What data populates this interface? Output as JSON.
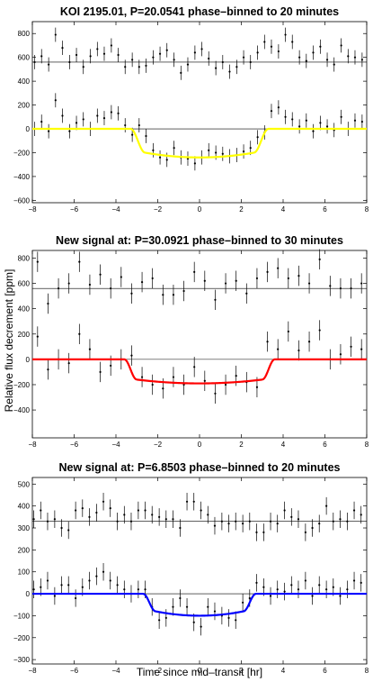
{
  "figure": {
    "ylabel": "Relative flux decrement [ppm]",
    "xlabel": "Time since mid–transit [hr]"
  },
  "chart_data": [
    {
      "type": "scatter",
      "title": "KOI 2195.01, P=20.0541 phase–binned to 20 minutes",
      "xlabel": "Time since mid–transit [hr]",
      "ylabel": "Relative flux decrement [ppm]",
      "xlim": [
        -8,
        8
      ],
      "ylim": [
        -620,
        900
      ],
      "xticks": [
        -8,
        -6,
        -4,
        -2,
        0,
        2,
        4,
        6,
        8
      ],
      "yticks": [
        -600,
        -400,
        -200,
        0,
        200,
        400,
        600,
        800
      ],
      "model_color": "#ffff00",
      "transit": {
        "depth": 200,
        "limb": 40,
        "t1": 2.6,
        "t2": 3.3
      },
      "offset_level": 560,
      "error_bar": 60,
      "series": [
        {
          "x": [
            -7.89,
            -7.56,
            -7.22,
            -6.89,
            -6.56,
            -6.22,
            -5.89,
            -5.56,
            -5.22,
            -4.89,
            -4.56,
            -4.22,
            -3.89,
            -3.56,
            -3.22,
            -2.89,
            -2.56,
            -2.22,
            -1.89,
            -1.56,
            -1.22,
            -0.89,
            -0.56,
            -0.22,
            0.11,
            0.44,
            0.78,
            1.11,
            1.44,
            1.78,
            2.11,
            2.44,
            2.78,
            3.11,
            3.44,
            3.78,
            4.11,
            4.44,
            4.78,
            5.11,
            5.44,
            5.78,
            6.11,
            6.44,
            6.78,
            7.11,
            7.44,
            7.78
          ],
          "y": [
            0,
            60,
            -20,
            240,
            110,
            -20,
            50,
            80,
            0,
            110,
            90,
            140,
            130,
            30,
            -50,
            30,
            -60,
            -180,
            -240,
            -260,
            -160,
            -240,
            -250,
            -290,
            -240,
            -180,
            -200,
            -210,
            -230,
            -220,
            -190,
            -160,
            -70,
            -30,
            150,
            180,
            100,
            80,
            20,
            70,
            -20,
            50,
            20,
            -10,
            100,
            0,
            70,
            60
          ]
        },
        {
          "x": [
            -7.89,
            -7.56,
            -7.22,
            -6.89,
            -6.56,
            -6.22,
            -5.89,
            -5.56,
            -5.22,
            -4.89,
            -4.56,
            -4.22,
            -3.89,
            -3.56,
            -3.22,
            -2.89,
            -2.56,
            -2.22,
            -1.89,
            -1.56,
            -1.22,
            -0.89,
            -0.56,
            -0.22,
            0.11,
            0.44,
            0.78,
            1.11,
            1.44,
            1.78,
            2.11,
            2.44,
            2.78,
            3.11,
            3.44,
            3.78,
            4.11,
            4.44,
            4.78,
            5.11,
            5.44,
            5.78,
            6.11,
            6.44,
            6.78,
            7.11,
            7.44,
            7.78
          ],
          "y": [
            560,
            610,
            540,
            790,
            680,
            560,
            620,
            520,
            610,
            670,
            630,
            700,
            620,
            520,
            580,
            520,
            530,
            600,
            630,
            660,
            580,
            470,
            540,
            640,
            670,
            590,
            510,
            560,
            480,
            520,
            600,
            560,
            640,
            730,
            690,
            650,
            790,
            730,
            600,
            570,
            640,
            690,
            580,
            540,
            700,
            610,
            600,
            580
          ]
        }
      ]
    },
    {
      "type": "scatter",
      "title": "New signal at: P=30.0921 phase–binned to 30 minutes",
      "xlim": [
        -8,
        8
      ],
      "ylim": [
        -620,
        860
      ],
      "xticks": [
        -8,
        -6,
        -4,
        -2,
        0,
        2,
        4,
        6,
        8
      ],
      "yticks": [
        -400,
        -200,
        0,
        200,
        400,
        600,
        800
      ],
      "model_color": "#ff0000",
      "transit": {
        "depth": 160,
        "limb": 30,
        "t1": 3.0,
        "t2": 3.6
      },
      "offset_level": 560,
      "error_bar": 80,
      "series": [
        {
          "x": [
            -7.75,
            -7.25,
            -6.75,
            -6.25,
            -5.75,
            -5.25,
            -4.75,
            -4.25,
            -3.75,
            -3.25,
            -2.75,
            -2.25,
            -1.75,
            -1.25,
            -0.75,
            -0.25,
            0.25,
            0.75,
            1.25,
            1.75,
            2.25,
            2.75,
            3.25,
            3.75,
            4.25,
            4.75,
            5.25,
            5.75,
            6.25,
            6.75,
            7.25,
            7.75
          ],
          "y": [
            180,
            -80,
            0,
            -30,
            200,
            80,
            -100,
            -50,
            0,
            30,
            -140,
            -200,
            -230,
            -140,
            -200,
            -60,
            -170,
            -270,
            -200,
            -130,
            -180,
            -220,
            140,
            80,
            220,
            70,
            140,
            230,
            0,
            40,
            100,
            80
          ]
        },
        {
          "x": [
            -7.75,
            -7.25,
            -6.75,
            -6.25,
            -5.75,
            -5.25,
            -4.75,
            -4.25,
            -3.75,
            -3.25,
            -2.75,
            -2.25,
            -1.75,
            -1.25,
            -0.75,
            -0.25,
            0.25,
            0.75,
            1.25,
            1.75,
            2.25,
            2.75,
            3.25,
            3.75,
            4.25,
            4.75,
            5.25,
            5.75,
            6.25,
            6.75,
            7.25,
            7.75
          ],
          "y": [
            770,
            440,
            560,
            600,
            770,
            590,
            670,
            560,
            650,
            520,
            610,
            640,
            510,
            510,
            540,
            690,
            620,
            470,
            600,
            620,
            520,
            640,
            690,
            720,
            640,
            660,
            600,
            790,
            580,
            560,
            560,
            600
          ]
        }
      ]
    },
    {
      "type": "scatter",
      "title": "New signal at: P=6.8503 phase–binned to 20 minutes",
      "xlim": [
        -8,
        8
      ],
      "ylim": [
        -320,
        530
      ],
      "xticks": [
        -8,
        -6,
        -4,
        -2,
        0,
        2,
        4,
        6,
        8
      ],
      "yticks": [
        -300,
        -200,
        -100,
        0,
        100,
        200,
        300,
        400,
        500
      ],
      "model_color": "#0000ff",
      "transit": {
        "depth": 80,
        "limb": 20,
        "t1": 2.1,
        "t2": 2.7
      },
      "offset_level": 330,
      "error_bar": 40,
      "series": [
        {
          "x": [
            -7.93,
            -7.6,
            -7.27,
            -6.93,
            -6.6,
            -6.27,
            -5.93,
            -5.6,
            -5.27,
            -4.93,
            -4.6,
            -4.27,
            -3.93,
            -3.6,
            -3.27,
            -2.93,
            -2.6,
            -2.27,
            -1.93,
            -1.6,
            -1.27,
            -0.93,
            -0.6,
            -0.27,
            0.07,
            0.4,
            0.73,
            1.07,
            1.4,
            1.73,
            2.07,
            2.4,
            2.73,
            3.07,
            3.4,
            3.73,
            4.07,
            4.4,
            4.73,
            5.07,
            5.4,
            5.73,
            6.07,
            6.4,
            6.73,
            7.07,
            7.4,
            7.73
          ],
          "y": [
            20,
            30,
            60,
            -10,
            40,
            40,
            -20,
            30,
            60,
            80,
            100,
            60,
            40,
            20,
            0,
            20,
            20,
            -60,
            -120,
            -110,
            -60,
            -20,
            -60,
            -130,
            -150,
            -60,
            -80,
            -100,
            -110,
            -120,
            -40,
            -20,
            50,
            30,
            -10,
            20,
            10,
            40,
            20,
            60,
            -10,
            40,
            20,
            30,
            -10,
            20,
            60,
            50
          ]
        },
        {
          "x": [
            -7.93,
            -7.6,
            -7.27,
            -6.93,
            -6.6,
            -6.27,
            -5.93,
            -5.6,
            -5.27,
            -4.93,
            -4.6,
            -4.27,
            -3.93,
            -3.6,
            -3.27,
            -2.93,
            -2.6,
            -2.27,
            -1.93,
            -1.6,
            -1.27,
            -0.93,
            -0.6,
            -0.27,
            0.07,
            0.4,
            0.73,
            1.07,
            1.4,
            1.73,
            2.07,
            2.4,
            2.73,
            3.07,
            3.4,
            3.73,
            4.07,
            4.4,
            4.73,
            5.07,
            5.4,
            5.73,
            6.07,
            6.4,
            6.73,
            7.07,
            7.4,
            7.73
          ],
          "y": [
            340,
            380,
            330,
            340,
            300,
            290,
            380,
            390,
            350,
            370,
            420,
            390,
            330,
            360,
            330,
            380,
            380,
            360,
            350,
            340,
            340,
            300,
            420,
            420,
            380,
            360,
            310,
            330,
            320,
            330,
            320,
            330,
            280,
            280,
            330,
            320,
            380,
            350,
            340,
            280,
            300,
            320,
            400,
            330,
            340,
            330,
            380,
            360
          ]
        }
      ]
    }
  ]
}
